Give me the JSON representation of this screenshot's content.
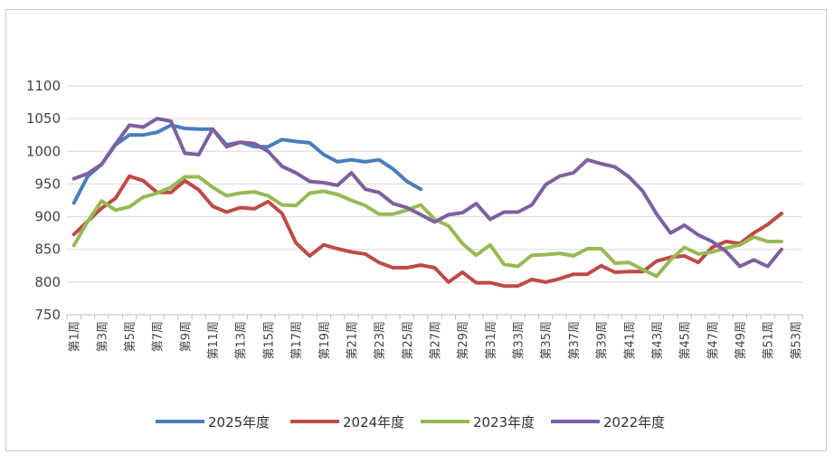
{
  "chart_data": {
    "type": "line",
    "title": "",
    "xlabel": "",
    "ylabel": "",
    "ylim": [
      750,
      1100
    ],
    "yticks": [
      750,
      800,
      850,
      900,
      950,
      1000,
      1050,
      1100
    ],
    "ytick_labels": [
      "750",
      "800",
      "850",
      "900",
      "950",
      "1000",
      "1050",
      "1100"
    ],
    "grid": "horizontal",
    "legend": "bottom",
    "xtick_labels": [
      "第1周",
      "第3周",
      "第5周",
      "第7周",
      "第9周",
      "第11周",
      "第13周",
      "第15周",
      "第17周",
      "第19周",
      "第21周",
      "第23周",
      "第25周",
      "第27周",
      "第29周",
      "第31周",
      "第33周",
      "第35周",
      "第37周",
      "第39周",
      "第41周",
      "第43周",
      "第45周",
      "第47周",
      "第49周",
      "第51周",
      "第53周"
    ],
    "series": [
      {
        "name": "2025年度",
        "color": "#4a7ebb",
        "values": [
          921,
          962,
          980,
          1010,
          1025,
          1025,
          1029,
          1040,
          1035,
          1034,
          1034,
          1010,
          1014,
          1007,
          1007,
          1018,
          1015,
          1013,
          995,
          984,
          987,
          984,
          987,
          973,
          954,
          942
        ]
      },
      {
        "name": "2024年度",
        "color": "#be4b48",
        "values": [
          873,
          893,
          913,
          928,
          962,
          955,
          937,
          937,
          955,
          941,
          916,
          907,
          914,
          912,
          923,
          905,
          860,
          840,
          857,
          851,
          846,
          843,
          830,
          822,
          822,
          826,
          822,
          800,
          815,
          799,
          799,
          794,
          794,
          804,
          800,
          805,
          812,
          812,
          825,
          815,
          816,
          816,
          832,
          838,
          840,
          830,
          853,
          862,
          859,
          875,
          888,
          905
        ]
      },
      {
        "name": "2023年度",
        "color": "#98b954",
        "values": [
          856,
          893,
          924,
          910,
          915,
          930,
          936,
          945,
          961,
          961,
          945,
          932,
          936,
          938,
          932,
          918,
          917,
          936,
          939,
          934,
          925,
          917,
          904,
          904,
          910,
          918,
          896,
          886,
          859,
          841,
          857,
          827,
          824,
          841,
          842,
          844,
          840,
          851,
          851,
          829,
          830,
          819,
          809,
          834,
          853,
          843,
          846,
          852,
          857,
          869,
          862,
          862
        ]
      },
      {
        "name": "2022年度",
        "color": "#7d60a0",
        "values": [
          958,
          966,
          980,
          1011,
          1040,
          1037,
          1050,
          1046,
          997,
          995,
          1034,
          1007,
          1014,
          1012,
          1000,
          977,
          967,
          954,
          952,
          948,
          967,
          942,
          937,
          920,
          914,
          903,
          892,
          903,
          906,
          920,
          896,
          907,
          907,
          918,
          949,
          962,
          967,
          987,
          981,
          976,
          961,
          939,
          904,
          875,
          887,
          872,
          862,
          847,
          824,
          834,
          824,
          850
        ]
      }
    ]
  }
}
